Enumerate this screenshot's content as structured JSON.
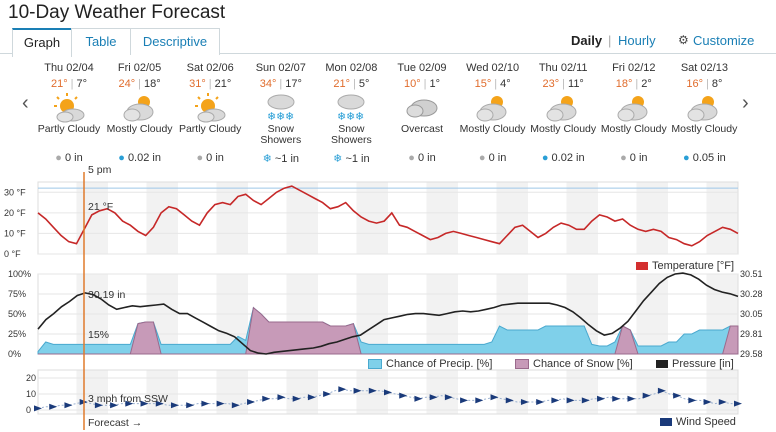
{
  "header": {
    "title": "10-Day Weather Forecast"
  },
  "tabs": {
    "graph": "Graph",
    "table": "Table",
    "descriptive": "Descriptive"
  },
  "view": {
    "daily": "Daily",
    "sep": "|",
    "hourly": "Hourly",
    "customize": "Customize"
  },
  "nav": {
    "prev": "‹",
    "next": "›"
  },
  "days": [
    {
      "date": "Thu 02/04",
      "hi": "21°",
      "lo": "7°",
      "cond": "Partly Cloudy",
      "icon": "partly-cloudy-icon",
      "precip": "0 in"
    },
    {
      "date": "Fri 02/05",
      "hi": "24°",
      "lo": "18°",
      "cond": "Mostly Cloudy",
      "icon": "mostly-cloudy-icon",
      "precip": "0.02 in"
    },
    {
      "date": "Sat 02/06",
      "hi": "31°",
      "lo": "21°",
      "cond": "Partly Cloudy",
      "icon": "partly-cloudy-icon",
      "precip": "0 in"
    },
    {
      "date": "Sun 02/07",
      "hi": "34°",
      "lo": "17°",
      "cond": "Snow Showers",
      "icon": "snow-icon",
      "precip": "~1 in"
    },
    {
      "date": "Mon 02/08",
      "hi": "21°",
      "lo": "5°",
      "cond": "Snow Showers",
      "icon": "snow-icon",
      "precip": "~1 in"
    },
    {
      "date": "Tue 02/09",
      "hi": "10°",
      "lo": "1°",
      "cond": "Overcast",
      "icon": "overcast-icon",
      "precip": "0 in"
    },
    {
      "date": "Wed 02/10",
      "hi": "15°",
      "lo": "4°",
      "cond": "Mostly Cloudy",
      "icon": "mostly-cloudy-icon",
      "precip": "0 in"
    },
    {
      "date": "Thu 02/11",
      "hi": "23°",
      "lo": "11°",
      "cond": "Mostly Cloudy",
      "icon": "mostly-cloudy-icon",
      "precip": "0.02 in"
    },
    {
      "date": "Fri 02/12",
      "hi": "18°",
      "lo": "2°",
      "cond": "Mostly Cloudy",
      "icon": "mostly-cloudy-icon",
      "precip": "0 in"
    },
    {
      "date": "Sat 02/13",
      "hi": "16°",
      "lo": "8°",
      "cond": "Mostly Cloudy",
      "icon": "mostly-cloudy-icon",
      "precip": "0.05 in"
    }
  ],
  "cursor": {
    "time": "5 pm",
    "temp": "21 °F",
    "pressure": "30.19 in",
    "precip": "15%",
    "wind": "3 mph from SSW",
    "forecast": "Forecast →"
  },
  "colors": {
    "temp": "#c62828",
    "precip": "#7fd0ea",
    "snow": "#c79ab8",
    "pressure": "#222222",
    "wind": "#1a3a7a",
    "accent": "#1a7fb5",
    "cursor": "#e07b2c"
  },
  "chart_data": [
    {
      "type": "line",
      "title": "",
      "ylabel": "",
      "yticks": [
        "30 °F",
        "20 °F",
        "10 °F",
        "0 °F"
      ],
      "ylim": [
        0,
        35
      ],
      "reference_line": 32,
      "series": [
        {
          "name": "Temperature [°F]",
          "values": [
            20,
            17,
            13,
            9,
            6,
            5,
            12,
            19,
            21,
            22,
            20,
            16,
            14,
            11,
            9,
            13,
            20,
            23,
            22,
            19,
            16,
            14,
            20,
            24,
            25,
            24,
            28,
            29,
            26,
            24,
            27,
            30,
            32,
            33,
            31,
            29,
            27,
            25,
            22,
            23,
            25,
            21,
            18,
            16,
            15,
            16,
            20,
            14,
            13,
            11,
            9,
            7,
            8,
            10,
            11,
            10,
            9,
            8,
            7,
            6,
            5,
            9,
            13,
            14,
            11,
            8,
            10,
            13,
            15,
            14,
            12,
            12,
            16,
            19,
            18,
            16,
            17,
            14,
            12,
            11,
            12,
            11,
            8,
            7,
            5,
            4,
            6,
            9,
            11,
            13,
            12,
            10
          ]
        }
      ]
    },
    {
      "type": "area",
      "yticks_left": [
        "100%",
        "75%",
        "50%",
        "25%",
        "0%"
      ],
      "yticks_right": [
        "30.51",
        "30.28",
        "30.05",
        "29.81",
        "29.58"
      ],
      "ylim": [
        0,
        100
      ],
      "series": [
        {
          "name": "Chance of Precip. [%]",
          "values": [
            3,
            15,
            12,
            12,
            12,
            12,
            12,
            12,
            12,
            12,
            12,
            12,
            12,
            38,
            40,
            40,
            12,
            12,
            12,
            12,
            12,
            12,
            12,
            12,
            12,
            12,
            22,
            17,
            58,
            50,
            40,
            40,
            40,
            40,
            40,
            40,
            40,
            40,
            35,
            35,
            35,
            38,
            15,
            12,
            12,
            12,
            12,
            12,
            12,
            12,
            12,
            12,
            12,
            12,
            12,
            12,
            12,
            12,
            12,
            15,
            35,
            30,
            30,
            30,
            30,
            30,
            35,
            35,
            35,
            35,
            35,
            35,
            12,
            10,
            10,
            15,
            35,
            30,
            10,
            10,
            10,
            10,
            15,
            15,
            25,
            25,
            30,
            30,
            30,
            30,
            35,
            35
          ]
        },
        {
          "name": "Chance of Snow [%]",
          "values": [
            0,
            0,
            0,
            0,
            0,
            0,
            0,
            0,
            0,
            0,
            0,
            0,
            0,
            38,
            40,
            40,
            0,
            0,
            0,
            0,
            0,
            0,
            0,
            0,
            0,
            0,
            0,
            0,
            58,
            50,
            40,
            40,
            40,
            40,
            40,
            40,
            40,
            40,
            35,
            35,
            35,
            38,
            0,
            0,
            0,
            0,
            0,
            0,
            0,
            0,
            0,
            0,
            0,
            0,
            0,
            0,
            0,
            0,
            0,
            0,
            0,
            0,
            0,
            0,
            0,
            0,
            0,
            0,
            0,
            0,
            0,
            0,
            0,
            0,
            0,
            0,
            35,
            30,
            0,
            0,
            0,
            0,
            0,
            0,
            0,
            0,
            0,
            0,
            0,
            0,
            35,
            35
          ]
        },
        {
          "name": "Pressure [in]",
          "values": [
            29.87,
            29.98,
            30.05,
            30.13,
            30.19,
            30.26,
            30.29,
            30.27,
            30.22,
            30.15,
            30.1,
            30.12,
            30.14,
            30.13,
            30.14,
            30.15,
            30.16,
            30.1,
            30.05,
            30.05,
            30.0,
            29.95,
            29.9,
            29.85,
            29.82,
            29.78,
            29.7,
            29.62,
            29.59,
            29.58,
            29.6,
            29.61,
            29.62,
            29.63,
            29.64,
            29.65,
            29.67,
            29.7,
            29.72,
            29.75,
            29.78,
            29.8,
            29.86,
            29.92,
            29.98,
            30.0,
            30.02,
            30.04,
            30.05,
            30.05,
            30.04,
            30.03,
            30.05,
            30.07,
            30.08,
            30.07,
            30.08,
            30.1,
            30.12,
            30.15,
            30.16,
            30.17,
            30.17,
            30.17,
            30.17,
            30.17,
            30.15,
            30.12,
            30.07,
            30.0,
            29.92,
            29.85,
            29.8,
            29.82,
            29.88,
            29.96,
            30.08,
            30.2,
            30.3,
            30.4,
            30.47,
            30.51,
            30.52,
            30.5,
            30.45,
            30.38,
            30.33,
            30.3,
            30.28,
            30.25
          ]
        }
      ]
    },
    {
      "type": "line",
      "yticks": [
        "20",
        "10",
        "0"
      ],
      "ylim": [
        0,
        20
      ],
      "series": [
        {
          "name": "Wind Speed",
          "values": [
            1,
            2,
            2,
            3,
            3,
            4,
            5,
            4,
            3,
            3,
            3,
            4,
            4,
            4,
            4,
            4,
            4,
            3,
            3,
            3,
            3,
            4,
            4,
            4,
            4,
            4,
            3,
            4,
            5,
            6,
            7,
            7,
            8,
            7,
            7,
            8,
            8,
            9,
            10,
            12,
            13,
            12,
            12,
            12,
            12,
            12,
            11,
            10,
            9,
            8,
            7,
            8,
            8,
            9,
            8,
            7,
            6,
            6,
            6,
            7,
            8,
            7,
            6,
            5,
            5,
            5,
            5,
            6,
            6,
            7,
            6,
            6,
            6,
            7,
            7,
            8,
            7,
            7,
            7,
            7,
            9,
            10,
            12,
            10,
            9,
            7,
            6,
            6,
            5,
            4,
            5,
            4,
            4
          ]
        }
      ]
    }
  ]
}
